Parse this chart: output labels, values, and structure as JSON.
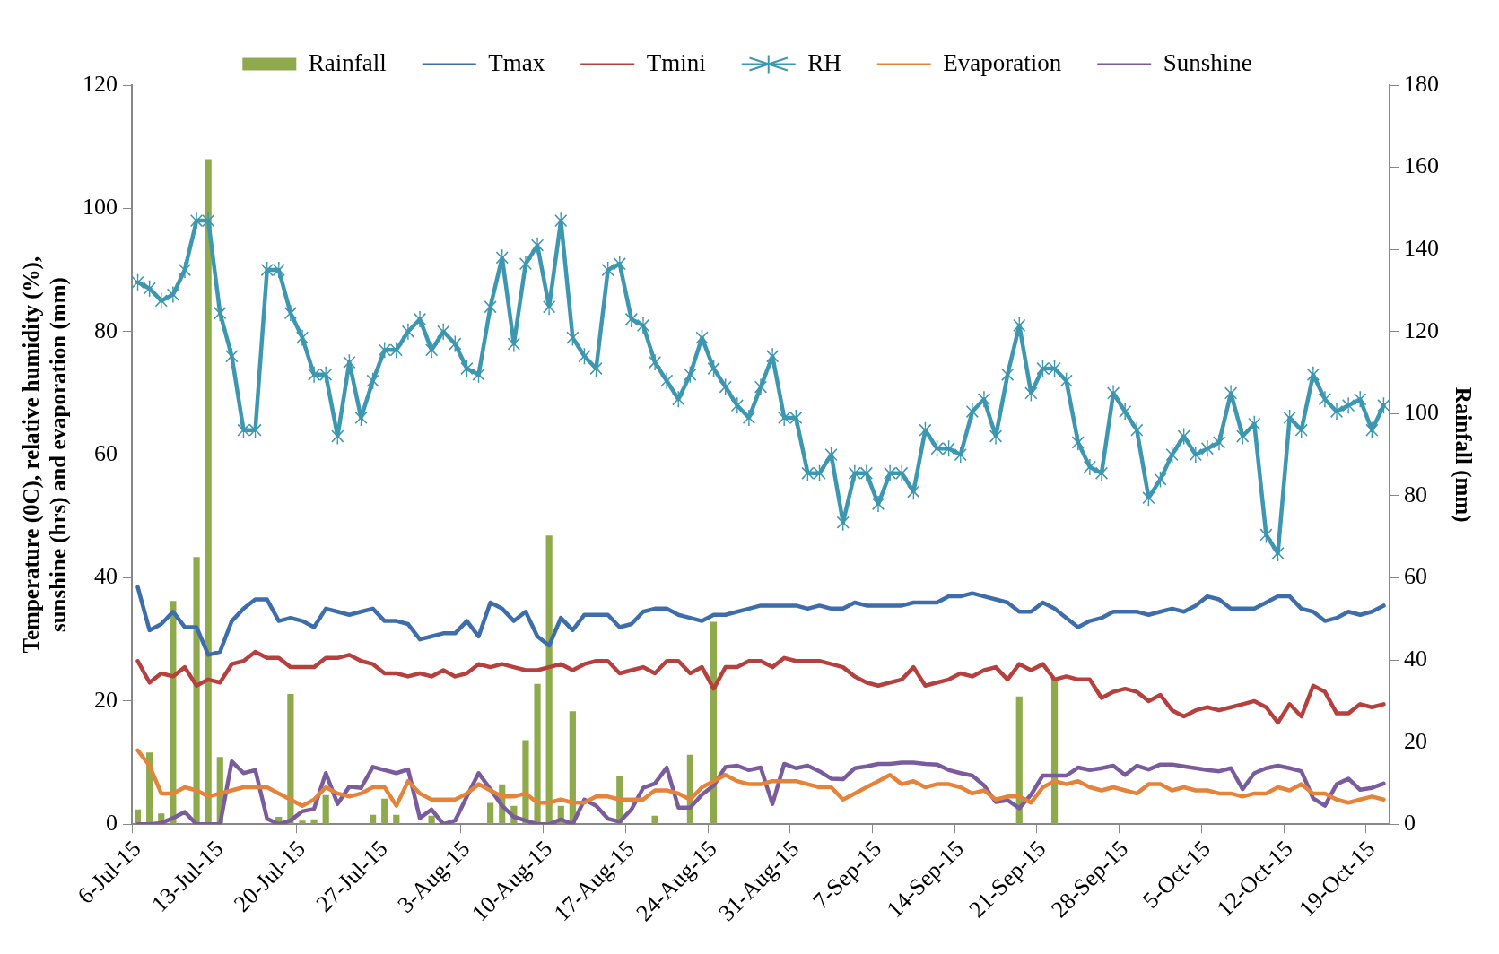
{
  "chart_data": {
    "type": "line",
    "categories": [
      "6-Jul-15",
      null,
      null,
      null,
      null,
      null,
      null,
      "13-Jul-15",
      null,
      null,
      null,
      null,
      null,
      null,
      "20-Jul-15",
      null,
      null,
      null,
      null,
      null,
      null,
      "27-Jul-15",
      null,
      null,
      null,
      null,
      null,
      null,
      "3-Aug-15",
      null,
      null,
      null,
      null,
      null,
      null,
      "10-Aug-15",
      null,
      null,
      null,
      null,
      null,
      null,
      "17-Aug-15",
      null,
      null,
      null,
      null,
      null,
      null,
      "24-Aug-15",
      null,
      null,
      null,
      null,
      null,
      null,
      "31-Aug-15",
      null,
      null,
      null,
      null,
      null,
      null,
      "7-Sep-15",
      null,
      null,
      null,
      null,
      null,
      null,
      "14-Sep-15",
      null,
      null,
      null,
      null,
      null,
      null,
      "21-Sep-15",
      null,
      null,
      null,
      null,
      null,
      null,
      "28-Sep-15",
      null,
      null,
      null,
      null,
      null,
      null,
      "5-Oct-15",
      null,
      null,
      null,
      null,
      null,
      null,
      "12-Oct-15",
      null,
      null,
      null,
      null,
      null,
      null,
      "19-Oct-15",
      null
    ],
    "series": [
      {
        "name": "Rainfall",
        "type": "bar",
        "axis": "y2",
        "color": "#8faa4c",
        "values": [
          3.6,
          17.5,
          2.6,
          54.4,
          0,
          65.1,
          162,
          16.4,
          0,
          0,
          0,
          0,
          1.8,
          31.7,
          0.9,
          1.2,
          7.1,
          0,
          0,
          0,
          2.3,
          6.2,
          2.3,
          0,
          0,
          2.1,
          0,
          0,
          0,
          0,
          5.2,
          9.7,
          4.5,
          20.5,
          34.2,
          70.3,
          4.5,
          27.5,
          0,
          0,
          0,
          11.8,
          0,
          0,
          2.1,
          0,
          0,
          16.9,
          0,
          49.3,
          0,
          0,
          0,
          0,
          0,
          0,
          0,
          0,
          0,
          0,
          0,
          0,
          0,
          0,
          0,
          0,
          0,
          0,
          0,
          0,
          0,
          0,
          0,
          0,
          0,
          31.1,
          0,
          0,
          35.6,
          0,
          0,
          0,
          0,
          0,
          0,
          0,
          0,
          0,
          0,
          0,
          0,
          0,
          0,
          0,
          0,
          0,
          0,
          0,
          0,
          0,
          0,
          0,
          0,
          0,
          0,
          0,
          0
        ]
      },
      {
        "name": "Tmax",
        "color": "#3d6eab",
        "marker": "none",
        "values": [
          38.5,
          31.5,
          32.5,
          34.5,
          32,
          32,
          27.5,
          28,
          33,
          35,
          36.5,
          36.5,
          33,
          33.5,
          33,
          32,
          35,
          34.5,
          34,
          34.5,
          35,
          33,
          33,
          32.5,
          30,
          30.5,
          31,
          31,
          33,
          30.5,
          36,
          35,
          33,
          34.5,
          30.5,
          29,
          33.5,
          31.5,
          34,
          34,
          34,
          32,
          32.5,
          34.5,
          35,
          35,
          34,
          33.5,
          33,
          34,
          34,
          34.5,
          35,
          35.5,
          35.5,
          35.5,
          35.5,
          35,
          35.5,
          35,
          35,
          36,
          35.5,
          35.5,
          35.5,
          35.5,
          36,
          36,
          36,
          37,
          37,
          37.5,
          37,
          36.5,
          36,
          34.5,
          34.5,
          36,
          35,
          33.5,
          32,
          33,
          33.5,
          34.5,
          34.5,
          34.5,
          34,
          34.5,
          35,
          34.5,
          35.5,
          37,
          36.5,
          35,
          35,
          35,
          36,
          37,
          37,
          35,
          34.5,
          33,
          33.5,
          34.5,
          34,
          34.5,
          35.5
        ]
      },
      {
        "name": "Tmini",
        "color": "#b5403d",
        "marker": "none",
        "values": [
          26.5,
          23,
          24.5,
          24,
          25.5,
          22.5,
          23.5,
          23,
          26,
          26.5,
          28,
          27,
          27,
          25.5,
          25.5,
          25.5,
          27,
          27,
          27.5,
          26.5,
          26,
          24.5,
          24.5,
          24,
          24.5,
          24,
          25,
          24,
          24.5,
          26,
          25.5,
          26,
          25.5,
          25,
          25,
          25.5,
          26,
          25,
          26,
          26.5,
          26.5,
          24.5,
          25,
          25.5,
          24.5,
          26.5,
          26.5,
          24.5,
          25.5,
          22,
          25.5,
          25.5,
          26.5,
          26.5,
          25.5,
          27,
          26.5,
          26.5,
          26.5,
          26,
          25.5,
          24,
          23,
          22.5,
          23,
          23.5,
          25.5,
          22.5,
          23,
          23.5,
          24.5,
          24,
          25,
          25.5,
          23.5,
          26,
          25,
          26,
          23.5,
          24,
          23.5,
          23.5,
          20.5,
          21.5,
          22,
          21.5,
          20,
          21,
          18.5,
          17.5,
          18.5,
          19,
          18.5,
          19,
          19.5,
          20,
          19,
          16.5,
          19.5,
          17.5,
          22.5,
          21.5,
          18,
          18,
          19.5,
          19,
          19.5
        ]
      },
      {
        "name": "RH",
        "color": "#3d97b0",
        "marker": "star",
        "values": [
          88,
          87,
          85,
          86,
          90,
          98,
          98,
          83,
          76,
          64,
          64,
          90,
          90,
          83,
          79,
          73,
          73,
          63,
          75,
          66,
          72,
          77,
          77,
          80,
          82,
          77,
          80,
          78,
          74,
          73,
          84,
          92,
          78,
          91,
          94,
          84,
          98,
          79,
          76,
          74,
          90,
          91,
          82,
          81,
          75,
          72,
          69,
          73,
          79,
          74,
          71,
          68,
          66,
          71,
          76,
          66,
          66,
          57,
          57,
          60,
          49,
          57,
          57,
          52,
          57,
          57,
          54,
          64,
          61,
          61,
          60,
          67,
          69,
          63,
          73,
          81,
          70,
          74,
          74,
          72,
          62,
          58,
          57,
          70,
          67,
          64,
          53,
          56,
          60,
          63,
          60,
          61,
          62,
          70,
          63,
          65,
          47,
          44,
          66,
          64,
          73,
          69,
          67,
          68,
          69,
          64,
          68
        ]
      },
      {
        "name": "Evaporation",
        "color": "#e5833a",
        "marker": "none",
        "values": [
          12,
          9.5,
          5,
          5,
          6,
          5.5,
          4.5,
          5,
          5.5,
          6,
          6,
          6,
          5,
          4,
          3,
          4,
          6,
          5,
          4.5,
          5,
          6,
          6,
          3,
          7,
          5,
          4,
          4,
          4,
          5,
          6.5,
          5.5,
          4.5,
          4.5,
          5,
          3.5,
          3.5,
          4,
          3.5,
          3.5,
          4.5,
          4.5,
          4,
          4,
          4,
          5.5,
          5.5,
          5,
          4,
          6,
          7,
          8,
          7,
          6.5,
          6.5,
          7,
          7,
          7,
          6.5,
          6,
          6,
          4,
          5,
          6,
          7,
          8,
          6.5,
          7,
          6,
          6.5,
          6.5,
          6,
          5,
          5.5,
          4,
          4.5,
          4.5,
          3.5,
          6,
          7,
          6.5,
          7,
          6,
          5.5,
          6,
          5.5,
          5,
          6.5,
          6.5,
          5.5,
          6,
          5.5,
          5.5,
          5,
          5,
          4.5,
          5,
          5,
          6,
          5.5,
          6.5,
          5,
          5,
          4,
          3.5,
          4,
          4.5,
          4
        ]
      },
      {
        "name": "Sunshine",
        "color": "#7a5c9e",
        "marker": "none",
        "values": [
          0,
          0,
          0.2,
          1,
          2,
          0,
          0,
          0,
          10.2,
          8.3,
          8.8,
          0.9,
          0,
          0.6,
          2.1,
          2.5,
          8.3,
          3.3,
          6.1,
          5.9,
          9.3,
          8.8,
          8.3,
          8.9,
          1,
          2.4,
          0,
          0.6,
          4.5,
          8.3,
          5.7,
          3,
          1.2,
          0.6,
          0,
          0,
          0.8,
          0,
          4,
          3,
          0.9,
          0.4,
          2.4,
          5.9,
          6.6,
          9.2,
          2.7,
          2.7,
          4.8,
          6.3,
          9.3,
          9.5,
          8.8,
          9.2,
          3.3,
          9.8,
          9.1,
          9.5,
          8.6,
          7.4,
          7.3,
          9.1,
          9.4,
          9.8,
          9.8,
          10,
          10,
          9.8,
          9.7,
          8.8,
          8.3,
          7.9,
          6.3,
          3.6,
          3.9,
          2.6,
          4.8,
          7.9,
          7.9,
          7.9,
          9.2,
          8.8,
          9.1,
          9.5,
          8,
          9.5,
          8.9,
          9.7,
          9.7,
          9.4,
          9.1,
          8.8,
          8.6,
          9.1,
          5.7,
          8.3,
          9.1,
          9.5,
          9.1,
          8.6,
          4.2,
          3,
          6.5,
          7.4,
          5.6,
          5.9,
          6.6
        ]
      }
    ],
    "ylabel": "Temperature (0C), relative humidity (%), sunshine (hrs) and evaporation (mm)",
    "y2label": "Rainfall (mm)",
    "ylim": [
      0,
      120
    ],
    "yticks": [
      0,
      20,
      40,
      60,
      80,
      100,
      120
    ],
    "y2lim": [
      0,
      180
    ],
    "y2ticks": [
      0,
      20,
      40,
      60,
      80,
      100,
      120,
      140,
      160,
      180
    ],
    "grid": false,
    "legend": "top"
  }
}
